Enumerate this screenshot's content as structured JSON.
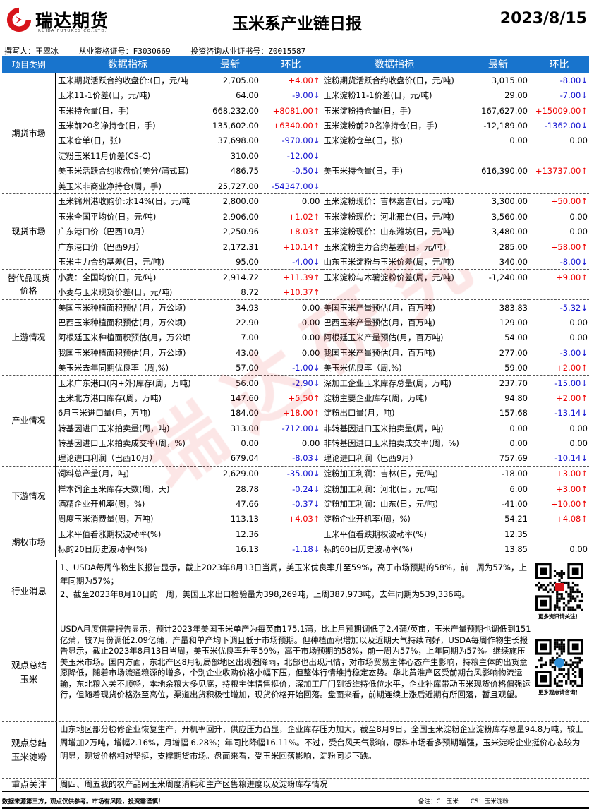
{
  "header": {
    "logo_cn": "瑞达期货",
    "logo_en": "RUIDA FUTURES CO.,LTD.",
    "title": "玉米系产业链日报",
    "date": "2023/8/15",
    "author": "撰写人：王翠冰",
    "license": "从业资格证号：F3030669",
    "advisor_license": "投资咨询从业证书号：Z0015587"
  },
  "watermark": "瑞达研究",
  "colors": {
    "header_bg": "#1874cd",
    "up": "#e00000",
    "down": "#1010d0"
  },
  "table": {
    "columns": [
      "项目类别",
      "数据指标",
      "最新",
      "环比",
      "数据指标",
      "最新",
      "环比"
    ],
    "sections": [
      {
        "category": "期货市场",
        "rows": [
          [
            "玉米期货活跃合约收盘价:(日，元/吨",
            "2,705.00",
            "+4.00↑",
            "淀粉期货活跃合约收盘价(日，元/吨)",
            "3,015.00",
            "-8.00↓"
          ],
          [
            "玉米11-1价差(日，元/吨)",
            "64.00",
            "-9.00↓",
            "玉米淀粉11-1价差(日，元/吨)",
            "29.00",
            "-7.00↓"
          ],
          [
            "玉米持仓量(日，手)",
            "668,232.00",
            "+8081.00↑",
            "玉米淀粉持仓量(日，手)",
            "167,627.00",
            "+15009.00↑"
          ],
          [
            "玉米前20名净持仓(日，手)",
            "135,602.00",
            "+6340.00↑",
            "玉米淀粉前20名净持仓(日，手)",
            "-12,189.00",
            "-1362.00↓"
          ],
          [
            "玉米仓单(日，张)",
            "37,698.00",
            "-970.00↓",
            "玉米淀粉仓单(日，张)",
            "0.00",
            "0.00"
          ],
          [
            "淀粉玉米11月价差(CS-C)",
            "310.00",
            "-12.00↓",
            "",
            "",
            ""
          ],
          [
            "美玉米活跃合约收盘价(美分/蒲式耳)",
            "486.75",
            "-0.50↓",
            "美玉米持仓量(日，手)",
            "616,390.00",
            "+13737.00↑"
          ],
          [
            "美玉米非商业净持仓(周，手)",
            "25,727.00",
            "-54347.00↓",
            "",
            "",
            ""
          ]
        ]
      },
      {
        "category": "现货市场",
        "rows": [
          [
            "玉米锦州港收购价:水14%(日，元/吨",
            "2,800.00",
            "0.00",
            "玉米淀粉现价：吉林嘉吉(日，元/吨)",
            "3,300.00",
            "+50.00↑"
          ],
          [
            "玉米全国平均价(日，元/吨)",
            "2,906.00",
            "+1.02↑",
            "玉米淀粉现价：河北邢台(日，元/吨)",
            "3,560.00",
            "0.00"
          ],
          [
            "广东港口价（巴西10月）",
            "2,250.96",
            "+8.03↑",
            "玉米淀粉现价：山东潍坊(日，元/吨)",
            "3,480.00",
            "0.00"
          ],
          [
            "广东港口价（巴西9月）",
            "2,172.31",
            "+10.14↑",
            "玉米淀粉主力合约基差(日，元/吨)",
            "285.00",
            "+58.00↑"
          ],
          [
            "玉米主力合约基差(日，元/吨)",
            "95.00",
            "-4.00↓",
            "山东玉米淀粉与玉米价差(周，元/吨)",
            "340.00",
            "-8.00↓"
          ]
        ]
      },
      {
        "category": "替代品现货价格",
        "rows": [
          [
            "小麦：全国均价(日，元/吨)",
            "2,914.72",
            "+11.39↑",
            "玉米淀粉与木薯淀粉价差(周，元/吨)",
            "-1,240.00",
            "+9.00↑"
          ],
          [
            "小麦与玉米现货价差(日，元/吨)",
            "8.72",
            "+10.37↑",
            "",
            "",
            ""
          ]
        ]
      },
      {
        "category": "上游情况",
        "rows": [
          [
            "美国玉米种植面积预估(月，万公顷)",
            "34.93",
            "0.00",
            "美国玉米产量预估(月，百万吨)",
            "383.83",
            "-5.32↓"
          ],
          [
            "巴西玉米种植面积预估(月，万公顷)",
            "22.90",
            "0.00",
            "巴西玉米产量预估(月，百万吨)",
            "129.00",
            "0.00"
          ],
          [
            "阿根廷玉米种植面积预估(月，万公顷",
            "7.00",
            "0.00",
            "阿根廷玉米产量预估(月，百万吨)",
            "54.00",
            "0.00"
          ],
          [
            "我国玉米种植面积预估(月，万公顷)",
            "43.00",
            "0.00",
            "我国玉米产量预估(月，百万吨)",
            "277.00",
            "-3.00↓"
          ],
          [
            "美玉米去年同期优良率（周,%)",
            "57.00",
            "-1.00↓",
            "美玉米优良率（周,%)",
            "59.00",
            "+2.00↑"
          ]
        ]
      },
      {
        "category": "产业情况",
        "rows": [
          [
            "玉米广东港口(内+外)库存(周，万吨)",
            "56.00",
            "-2.90↓",
            "深加工企业玉米库存总量(周，万吨)",
            "237.70",
            "-15.00↓"
          ],
          [
            "玉米北方港口库存(周，万吨)",
            "147.60",
            "+5.50↑",
            "淀粉主要企业库存(周，万吨)",
            "94.80",
            "+2.00↑"
          ],
          [
            "6月玉米进口量(月，万吨)",
            "184.00",
            "+18.00↑",
            "淀粉出口量(月，吨)",
            "157.68",
            "-13.14↓"
          ],
          [
            "转基因进口玉米拍卖量(周，吨)",
            "313.00",
            "-712.00↓",
            "非转基因进口玉米拍卖量(周，吨)",
            "0.00",
            "0.00"
          ],
          [
            "转基因进口玉米拍卖成交率(周，%)",
            "0.00",
            "0.00",
            "非转基因进口玉米拍卖成交率(周，%)",
            "0.00",
            "0.00"
          ],
          [
            "理论进口利润（巴西10月）",
            "679.04",
            "-8.03↓",
            "理论进口利润（巴西9月）",
            "757.69",
            "-10.14↓"
          ]
        ]
      },
      {
        "category": "下游情况",
        "rows": [
          [
            "饲料总产量(月，吨)",
            "2,629.00",
            "-35.00↓",
            "淀粉加工利润：吉林(日，元/吨)",
            "-18.00",
            "+3.00↑"
          ],
          [
            "样本饲企玉米库存天数(周，天)",
            "28.78",
            "-0.24↓",
            "淀粉加工利润：河北(日，元/吨)",
            "6.00",
            "+3.00↑"
          ],
          [
            "酒精企业开机率(周，%)",
            "47.66",
            "-0.37↓",
            "淀粉加工利润：山东(日，元/吨)",
            "-41.00",
            "+10.00↑"
          ],
          [
            "周度玉米消费量(周，万吨)",
            "113.13",
            "+4.03↑",
            "淀粉企业开机率(周，%)",
            "54.21",
            "+4.08↑"
          ]
        ]
      },
      {
        "category": "期权市场",
        "rows": [
          [
            "玉米平值看涨期权波动率(%)",
            "12.36",
            "",
            "玉米平值看跌期权波动率(%)",
            "12.35",
            ""
          ],
          [
            "标的20日历史波动率(%)",
            "16.13",
            "-1.18↓",
            "标的60日历史波动率(%)",
            "13.85",
            "0.00"
          ]
        ]
      }
    ]
  },
  "news": {
    "label": "行业消息",
    "text": "1、USDA每周作物生长报告显示，截止2023年8月13日当周，美玉米优良率升至59%，高于市场预期的58%，前一周为57%，上年同期为57%；\n2、截至2023年8月10日的一周，美国玉米出口检验量为398,269吨，上周387,973吨，去年同期为539,336吨。",
    "qr_caption": "更多资讯请关注！"
  },
  "view_corn": {
    "label": "观点总结玉米",
    "text": "USDA月度供需报告显示，预计2023年美国玉米单产为每英亩175.1蒲，比上月预期调低了2.4蒲/英亩，玉米产量预期也调低到151亿蒲，较7月份调低2.09亿蒲，产量和单产均下调且低于市场预期。但种植面积增加以及近期天气持续向好，USDA每周作物生长报告显示，截止2023年8月13日当周，美玉米优良率升至59%，高于市场预期的58%，前一周为57%，上年同期为57%。继续施压美玉米市场。国内方面，东北产区8月初局部地区出现强降雨，北部也出现汛情，对市场贸易主体心态产生影响，持粮主体的出货意愿降低，随着市场流通粮源的增多，个别企业收购价格小幅下压，但整体行情维持稳定态势。华北黄淮产区受前期台风影响物流运输，东北粮入关不顺畅，本地余粮大多见底，持粮主体惜售挺价，深加工厂门到货维持低位水平，企业补库带动玉米现货价格偏强运行，但随着现货价格涨至高位，渠道出货积极性增加，现货价格开始回落。盘面来看，前期连续上涨后近期有所回落，暂且观望。",
    "qr_caption": "更多观点请咨询！"
  },
  "view_starch": {
    "label": "观点总结玉米淀粉",
    "text": "山东地区部分检修企业恢复生产，开机率回升，供应压力凸显，企业库存压力加大，截至8月9日，全国玉米淀粉企业淀粉库存总量94.8万吨，较上周增加2万吨，增幅2.16%，月增幅 6.28%；年同比降幅16.11%。不过，受台风天气影响，原料市场看多预期增强，玉米淀粉企业挺价心态较为明显，现货价格相对坚挺，支撑期货市场。盘面来看，受玉米回落影响，淀粉同步下跌。"
  },
  "focus": {
    "label": "重点关注",
    "text": "周四、周五我的农产品网玉米周度消耗和主产区售粮进度以及淀粉库存情况"
  },
  "footer": {
    "disclaimer": "数据来源第三方，观点仅供参考。市场有风险，投资需谨慎！",
    "note": "备注：C：玉米　　CS：玉米淀粉"
  }
}
